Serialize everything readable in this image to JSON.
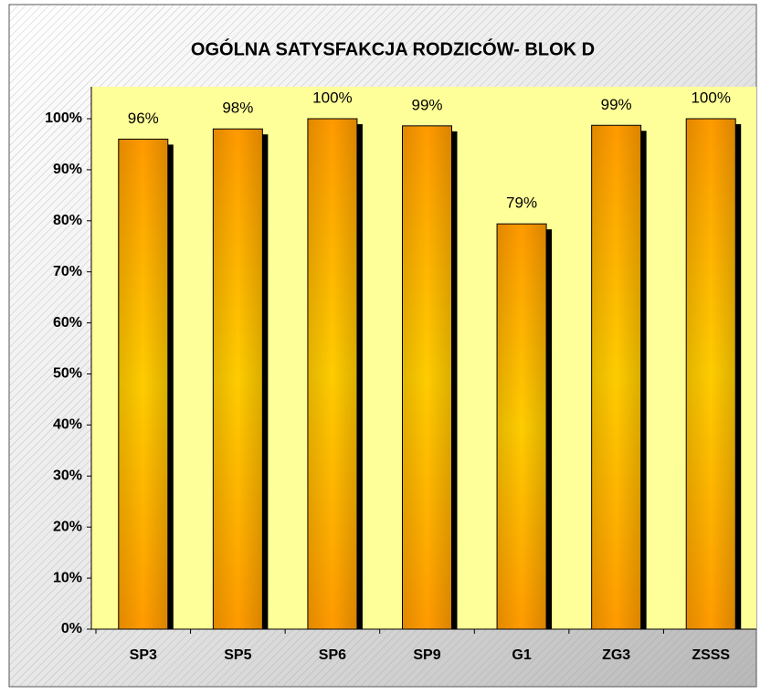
{
  "chart_data": {
    "type": "bar",
    "title": "OGÓLNA SATYSFAKCJA RODZICÓW- BLOK D",
    "categories": [
      "SP3",
      "SP5",
      "SP6",
      "SP9",
      "G1",
      "ZG3",
      "ZSSS"
    ],
    "values": [
      96,
      98,
      100,
      98.6,
      79.4,
      98.7,
      100
    ],
    "value_labels": [
      "96%",
      "98%",
      "100%",
      "99%",
      "79%",
      "99%",
      "100%"
    ],
    "color": "#ffa500",
    "ylim": [
      0,
      100
    ],
    "yticks": [
      {
        "value": 0,
        "label": "0%"
      },
      {
        "value": 10,
        "label": "10%"
      },
      {
        "value": 20,
        "label": "20%"
      },
      {
        "value": 30,
        "label": "30%"
      },
      {
        "value": 40,
        "label": "40%"
      },
      {
        "value": 50,
        "label": "50%"
      },
      {
        "value": 60,
        "label": "60%"
      },
      {
        "value": 70,
        "label": "70%"
      },
      {
        "value": 80,
        "label": "80%"
      },
      {
        "value": 90,
        "label": "90%"
      },
      {
        "value": 100,
        "label": "100%"
      }
    ],
    "grid": false
  }
}
